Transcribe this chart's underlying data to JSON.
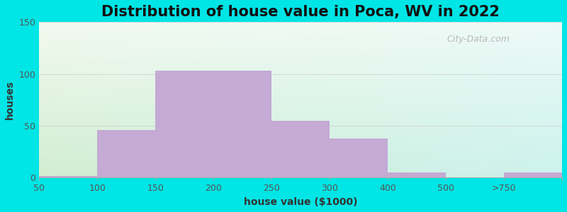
{
  "title": "Distribution of house value in Poca, WV in 2022",
  "xlabel": "house value ($1000)",
  "ylabel": "houses",
  "bar_color": "#c4aad4",
  "background_outer": "#00e5e5",
  "ylim": [
    0,
    150
  ],
  "yticks": [
    0,
    50,
    100,
    150
  ],
  "xtick_labels": [
    "50",
    "100",
    "150",
    "200",
    "250",
    "300",
    "400",
    "500",
    ">750"
  ],
  "bar_heights": [
    2,
    46,
    103,
    103,
    55,
    38,
    5,
    0,
    5
  ],
  "watermark": "City-Data.com",
  "title_fontsize": 15,
  "axis_label_fontsize": 10,
  "n_bins": 9,
  "xlim_left": 0,
  "xlim_right": 9
}
